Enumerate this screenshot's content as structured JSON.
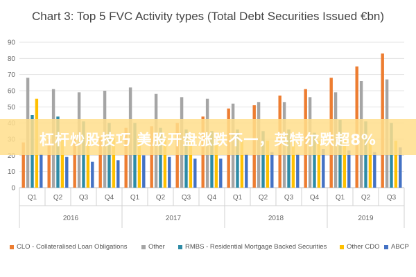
{
  "banner": {
    "text": "杠杆炒股技巧 美股开盘涨跌不一，英特尔跌超8%"
  },
  "chart_data": {
    "type": "bar",
    "title": "Chart 3: Top 5 FVC Activity types (Total Debt Securities Issued €bn)",
    "xlabel": "",
    "ylabel": "",
    "ylim": [
      0,
      90
    ],
    "yticks": [
      0,
      10,
      20,
      30,
      40,
      50,
      60,
      70,
      80,
      90
    ],
    "grid": true,
    "legend_position": "bottom",
    "categories": [
      "Q1",
      "Q2",
      "Q3",
      "Q4",
      "Q1",
      "Q2",
      "Q3",
      "Q4",
      "Q1",
      "Q2",
      "Q3",
      "Q4",
      "Q1",
      "Q2",
      "Q3"
    ],
    "groups": [
      {
        "label": "2016",
        "count": 4
      },
      {
        "label": "2017",
        "count": 4
      },
      {
        "label": "2018",
        "count": 4
      },
      {
        "label": "2019",
        "count": 3
      }
    ],
    "series": [
      {
        "name": "CLO - Collateralised Loan Obligations",
        "color": "#ED7D31",
        "values": [
          28,
          30,
          30,
          31,
          37,
          38,
          40,
          44,
          49,
          51,
          57,
          61,
          68,
          75,
          83
        ]
      },
      {
        "name": "Other",
        "color": "#A5A5A5",
        "values": [
          68,
          61,
          59,
          60,
          62,
          58,
          56,
          55,
          52,
          53,
          53,
          56,
          59,
          66,
          67
        ]
      },
      {
        "name": "RMBS - Residential Mortgage Backed Securities",
        "color": "#2E8BA6",
        "values": [
          45,
          44,
          41,
          40,
          40,
          37,
          36,
          35,
          36,
          35,
          36,
          34,
          42,
          41,
          40
        ]
      },
      {
        "name": "Other CDO",
        "color": "#FFC000",
        "values": [
          55,
          30,
          33,
          31,
          32,
          31,
          31,
          30,
          29,
          29,
          30,
          29,
          30,
          30,
          29
        ]
      },
      {
        "name": "ABCP",
        "color": "#4472C4",
        "values": [
          21,
          19,
          16,
          17,
          20,
          19,
          18,
          18,
          21,
          22,
          21,
          24,
          23,
          22,
          25
        ]
      }
    ]
  }
}
